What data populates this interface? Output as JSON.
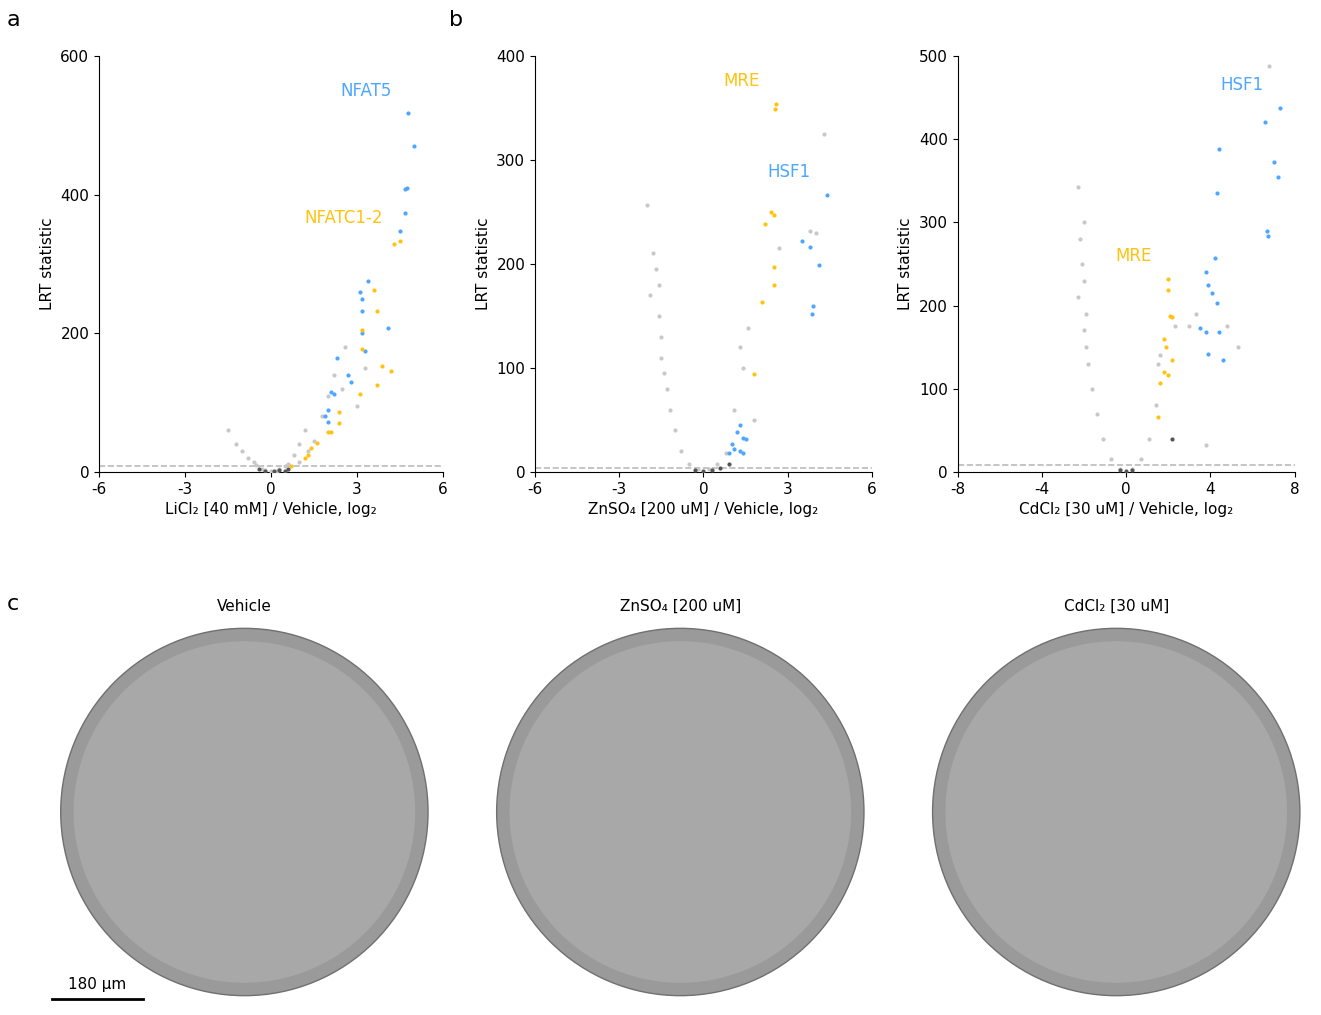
{
  "panel_labels": [
    "a",
    "b",
    "c"
  ],
  "chart_data": [
    {
      "type": "scatter",
      "xlabel": "LiCl₂ [40 mM] / Vehicle, log₂",
      "ylabel": "LRT statistic",
      "xlim": [
        -6,
        6
      ],
      "xticks": [
        -6,
        -3,
        0,
        3,
        6
      ],
      "ylim": [
        0,
        600
      ],
      "yticks": [
        0,
        200,
        400,
        600
      ],
      "threshold": 8,
      "series": [
        {
          "color": "#c8c8c8",
          "x": [
            -1.2,
            -1.5,
            -1.0,
            -0.8,
            -0.5,
            -0.3,
            0.0,
            0.3,
            0.6,
            0.8,
            1.0,
            1.2,
            1.5,
            1.8,
            2.2,
            2.5,
            3.0,
            3.3,
            0.5,
            -0.2,
            0.2,
            1.3,
            2.0,
            2.6,
            1.0,
            -0.6
          ],
          "y": [
            40,
            60,
            30,
            20,
            10,
            5,
            2,
            4,
            12,
            25,
            40,
            60,
            45,
            80,
            140,
            120,
            95,
            150,
            8,
            3,
            2,
            30,
            110,
            180,
            15,
            15
          ]
        },
        {
          "color": "#555555",
          "x": [
            -0.2,
            0.1,
            0.3,
            0.5,
            -0.4,
            0.6
          ],
          "y": [
            2,
            1,
            3,
            2,
            4,
            5
          ]
        },
        {
          "name": "NFAT5",
          "color": "#4da6ff",
          "x": [
            4.8,
            5.0,
            4.75,
            4.7,
            4.7,
            4.5,
            3.4,
            3.1,
            3.2,
            3.2,
            3.2,
            4.1,
            3.3,
            2.3,
            2.7,
            2.8,
            2.1,
            2.2,
            2.0,
            1.9,
            2.0
          ],
          "y": [
            517,
            470,
            410,
            408,
            373,
            348,
            275,
            260,
            250,
            232,
            200,
            208,
            175,
            165,
            140,
            130,
            115,
            113,
            90,
            80,
            72
          ]
        },
        {
          "name": "NFATC1-2",
          "color": "#ffc20e",
          "x": [
            4.5,
            4.3,
            3.6,
            3.7,
            3.2,
            3.2,
            3.9,
            4.2,
            3.7,
            3.1,
            2.4,
            2.4,
            2.0,
            2.1,
            1.6,
            1.4,
            1.3,
            1.2,
            0.7
          ],
          "y": [
            333,
            328,
            262,
            232,
            205,
            178,
            153,
            145,
            126,
            113,
            87,
            70,
            57,
            58,
            42,
            35,
            25,
            20,
            8
          ]
        }
      ]
    },
    {
      "type": "scatter",
      "xlabel": "ZnSO₄ [200 uM] / Vehicle, log₂",
      "ylabel": "LRT statistic",
      "xlim": [
        -6,
        6
      ],
      "xticks": [
        -6,
        -3,
        0,
        3,
        6
      ],
      "ylim": [
        0,
        400
      ],
      "yticks": [
        0,
        100,
        200,
        300,
        400
      ],
      "threshold": 4,
      "series": [
        {
          "color": "#c8c8c8",
          "x": [
            -2.0,
            -1.8,
            -1.7,
            -1.6,
            -1.6,
            -1.5,
            -1.5,
            -1.4,
            -1.3,
            -1.2,
            -1.0,
            -0.8,
            -0.5,
            -0.2,
            0.2,
            0.5,
            0.8,
            1.1,
            1.3,
            1.4,
            1.6,
            2.7,
            4.3,
            3.8,
            4.0,
            1.8,
            -1.9
          ],
          "y": [
            257,
            210,
            195,
            180,
            150,
            130,
            110,
            95,
            80,
            60,
            40,
            20,
            8,
            3,
            3,
            8,
            18,
            60,
            120,
            100,
            138,
            215,
            325,
            232,
            230,
            50,
            170
          ]
        },
        {
          "color": "#555555",
          "x": [
            0.0,
            0.3,
            -0.3,
            0.6,
            0.9
          ],
          "y": [
            1,
            2,
            2,
            4,
            8
          ]
        },
        {
          "name": "MRE",
          "color": "#ffc20e",
          "x": [
            2.6,
            2.55,
            2.4,
            2.5,
            2.2,
            2.5,
            2.5,
            2.1,
            1.8
          ],
          "y": [
            354,
            349,
            250,
            247,
            238,
            197,
            180,
            163,
            94
          ]
        },
        {
          "name": "HSF1",
          "color": "#4da6ff",
          "x": [
            4.4,
            3.5,
            3.8,
            4.1,
            3.9,
            3.85,
            1.3,
            1.2,
            1.4,
            1.5,
            1.0,
            1.1,
            1.3,
            0.9,
            1.4
          ],
          "y": [
            266,
            222,
            216,
            199,
            160,
            152,
            45,
            38,
            33,
            32,
            27,
            22,
            20,
            18,
            18
          ]
        }
      ]
    },
    {
      "type": "scatter",
      "xlabel": "CdCl₂ [30 uM] / Vehicle, log₂",
      "ylabel": "LRT statistic",
      "xlim": [
        -8,
        8
      ],
      "xticks": [
        -8,
        -4,
        0,
        4,
        8
      ],
      "ylim": [
        0,
        500
      ],
      "yticks": [
        0,
        100,
        200,
        300,
        400,
        500
      ],
      "threshold": 8,
      "series": [
        {
          "color": "#c8c8c8",
          "x": [
            -2.3,
            -2.0,
            -2.2,
            -2.1,
            -2.0,
            -2.3,
            -1.9,
            -2.0,
            -1.9,
            -1.8,
            -1.6,
            -1.4,
            -1.1,
            -0.7,
            -0.3,
            0.3,
            0.7,
            1.1,
            1.4,
            1.6,
            2.3,
            3.0,
            3.3,
            6.8,
            4.8,
            3.8,
            5.3,
            1.5
          ],
          "y": [
            342,
            300,
            280,
            250,
            230,
            210,
            190,
            170,
            150,
            130,
            100,
            70,
            40,
            15,
            4,
            4,
            15,
            40,
            80,
            140,
            175,
            175,
            190,
            488,
            175,
            33,
            150,
            130
          ]
        },
        {
          "color": "#555555",
          "x": [
            0.0,
            0.3,
            -0.3,
            2.2
          ],
          "y": [
            1,
            2,
            2,
            40
          ]
        },
        {
          "name": "HSF1",
          "color": "#4da6ff",
          "x": [
            7.3,
            6.6,
            7.0,
            7.2,
            6.7,
            6.75,
            4.4,
            4.3,
            4.2,
            3.8,
            3.9,
            4.1,
            4.3,
            3.5,
            3.8,
            4.4,
            3.9,
            4.6
          ],
          "y": [
            437,
            420,
            373,
            355,
            290,
            284,
            388,
            335,
            257,
            240,
            225,
            215,
            203,
            173,
            168,
            168,
            142,
            135
          ]
        },
        {
          "name": "MRE",
          "color": "#ffc20e",
          "x": [
            2.0,
            2.0,
            2.1,
            2.2,
            1.8,
            1.9,
            2.2,
            1.8,
            2.0,
            1.6,
            1.5
          ],
          "y": [
            232,
            219,
            187,
            186,
            160,
            150,
            134,
            120,
            116,
            107,
            66
          ]
        }
      ]
    }
  ],
  "images": {
    "titles": [
      "Vehicle",
      "ZnSO₄ [200 uM]",
      "CdCl₂ [30 uM]"
    ],
    "scale_bar": "180 µm"
  }
}
